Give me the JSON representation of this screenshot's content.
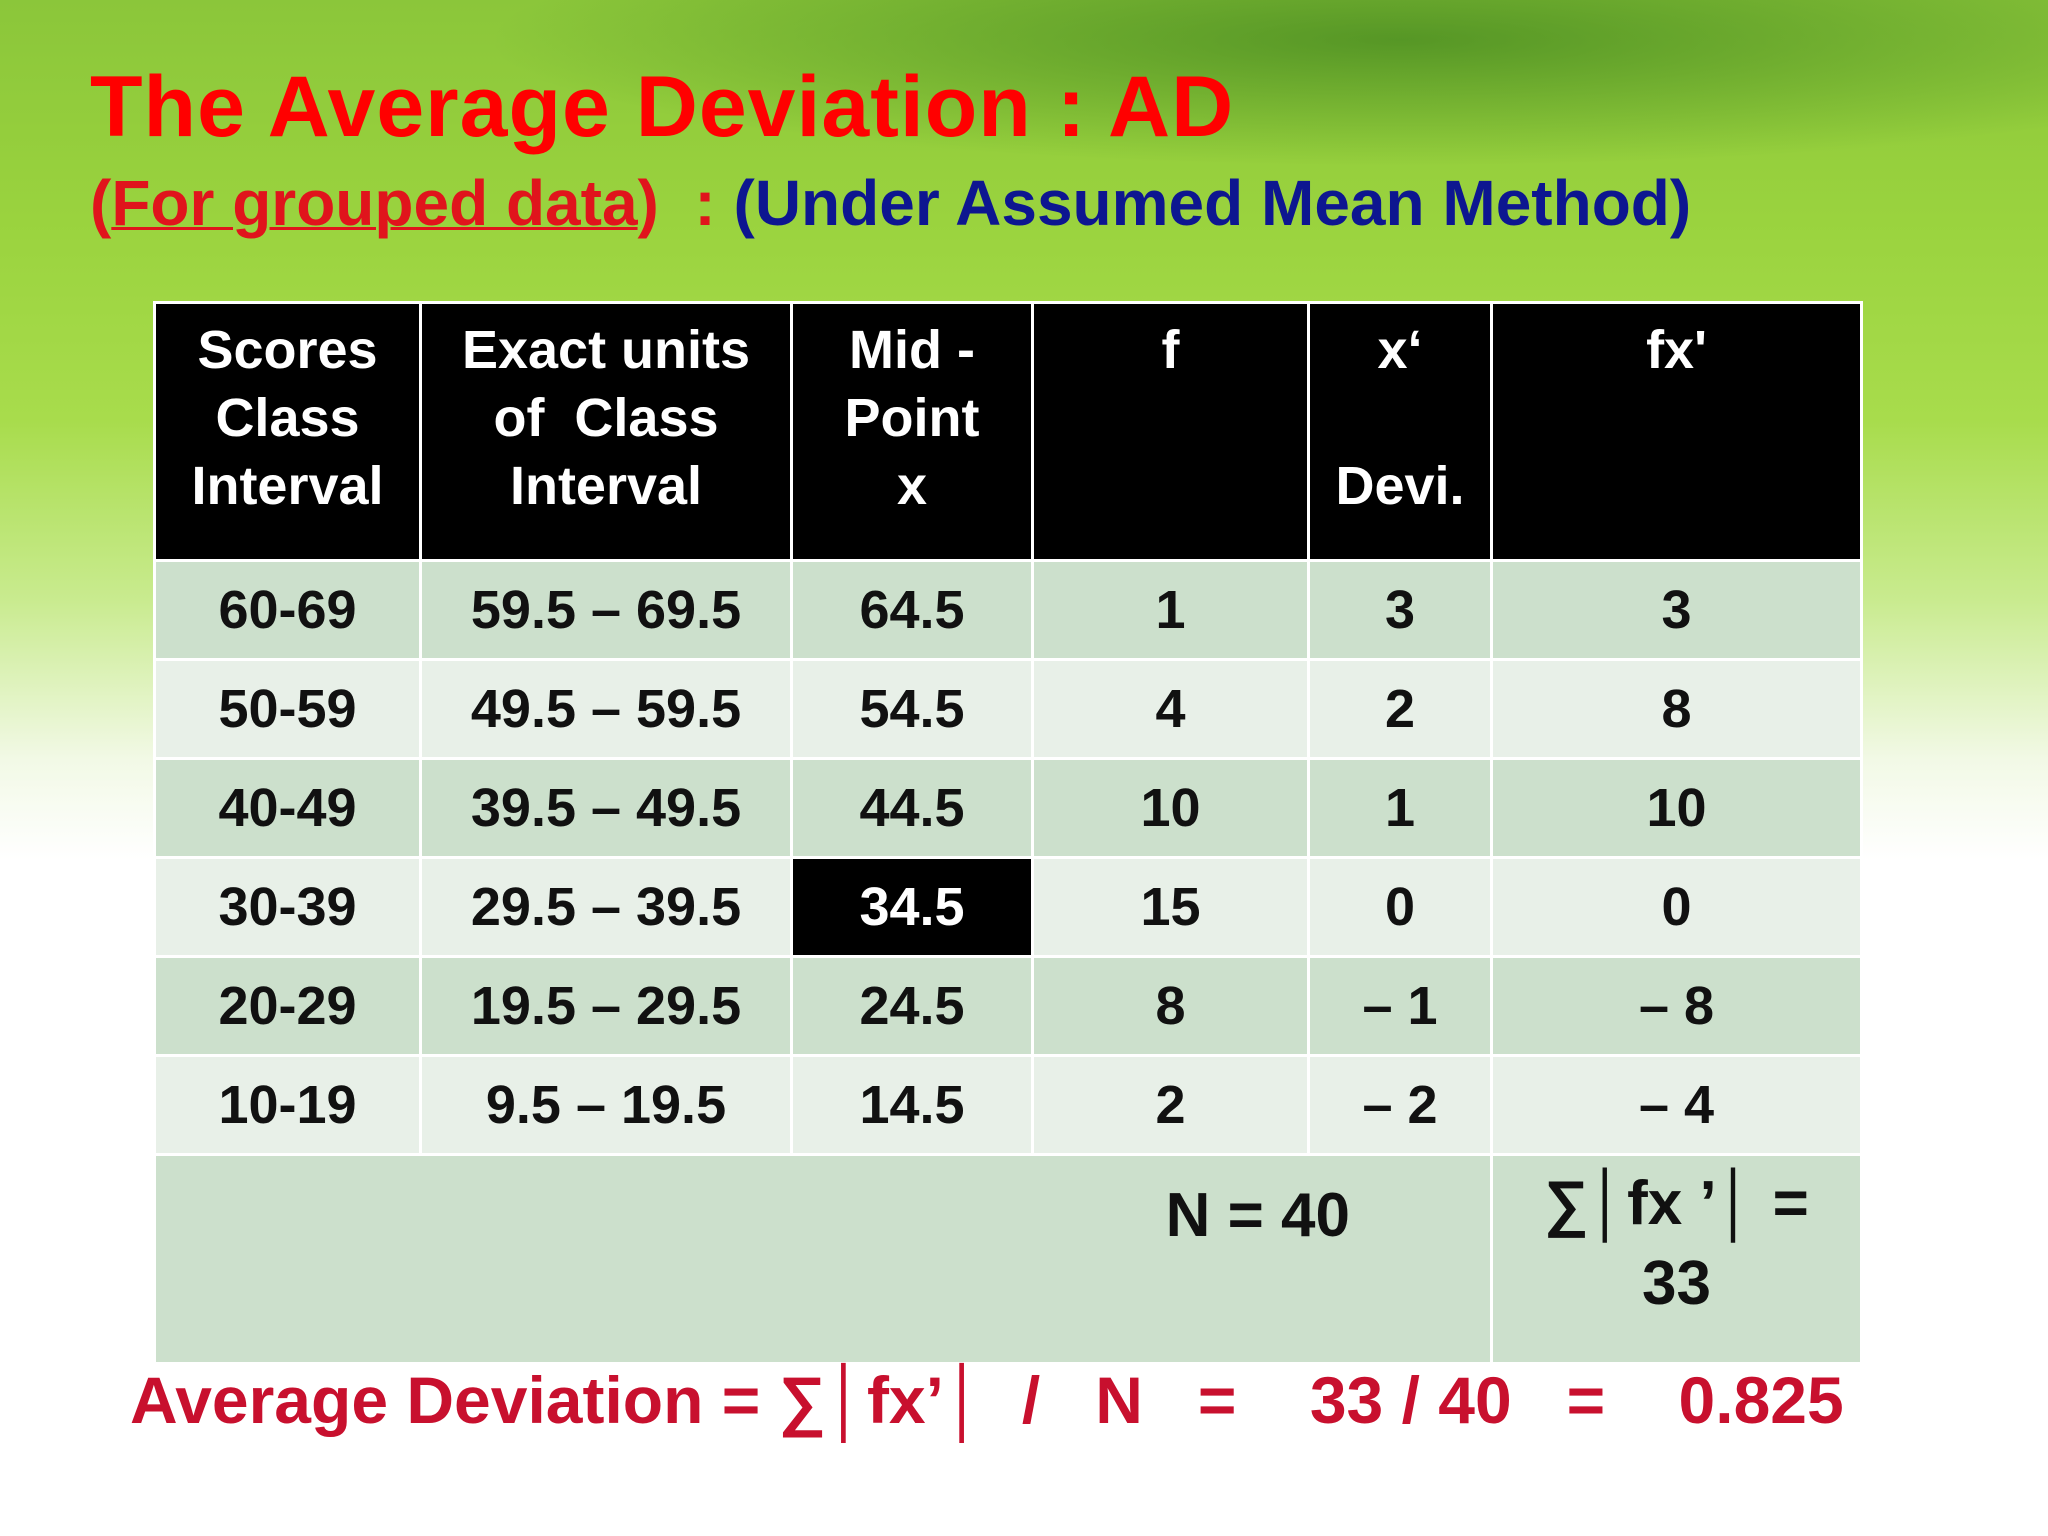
{
  "title": "The Average Deviation : AD",
  "subtitle": {
    "open_paren": "(",
    "grouped": "For grouped data",
    "close_paren": ")",
    "separator": "  : ",
    "method": "(Under Assumed Mean Method)"
  },
  "table": {
    "headers": [
      [
        "Scores",
        "Class",
        "Interval"
      ],
      [
        "Exact units",
        "of  Class",
        "Interval"
      ],
      [
        "Mid -",
        "Point",
        "x"
      ],
      [
        "f",
        "",
        ""
      ],
      [
        "x‘",
        "",
        "Devi."
      ],
      [
        "fx'",
        "",
        ""
      ]
    ],
    "rows": [
      [
        "60-69",
        "59.5 – 69.5",
        "64.5",
        "1",
        "3",
        "3"
      ],
      [
        "50-59",
        "49.5 – 59.5",
        "54.5",
        "4",
        "2",
        "8"
      ],
      [
        "40-49",
        "39.5 – 49.5",
        "44.5",
        "10",
        "1",
        "10"
      ],
      [
        "30-39",
        "29.5 – 39.5",
        "34.5",
        "15",
        "0",
        "0"
      ],
      [
        "20-29",
        "19.5 – 29.5",
        "24.5",
        "8",
        "– 1",
        "– 8"
      ],
      [
        "10-19",
        "9.5 – 19.5",
        "14.5",
        "2",
        "– 2",
        "– 4"
      ]
    ],
    "highlighted_cell": "34.5",
    "total_n": "N = 40",
    "total_sum_line1": "∑│fx ’│ =",
    "total_sum_line2": "33"
  },
  "formula": "Average Deviation = ∑│fx’│  /   N   =    33 / 40   =    0.825",
  "colors": {
    "title": "#ff0000",
    "subtitle_method": "#0d1690",
    "formula": "#c8102e",
    "header_bg": "#000000",
    "row_dark": "#cce0cc",
    "row_light": "#e8f0e8"
  }
}
